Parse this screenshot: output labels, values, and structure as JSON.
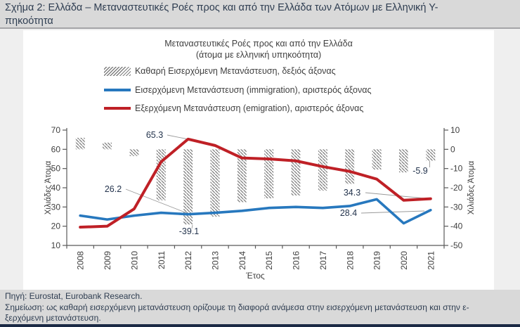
{
  "page": {
    "title_line1": "Σχήμα 2: Ελλάδα – Μεταναστευτικές Ροές προς και από την Ελλάδα των Ατόμων με Ελληνική Υ-",
    "title_line2": "πηκοότητα",
    "source": "Πηγή: Eurostat, Eurobank Research.",
    "note_line1": "Σημείωση: ως καθαρή εισερχόμενη μετανάστευση ορίζουμε τη διαφορά ανάμεσα στην εισερχόμενη μετανάστευση και στην ε-",
    "note_line2": "ξερχόμενη μετανάστευση."
  },
  "chart_data": {
    "type": "bar",
    "subtype": "combo-bar-line-dual-axis",
    "title_line1": "Μεταναστευτικές Ροές προς και από την Ελλάδα",
    "title_line2": "(άτομα με ελληνική υπηκοότητα)",
    "xlabel": "Έτος",
    "ylabel_left": "Χιλιάδες Άτομα",
    "ylabel_right": "Χιλιάδες Άτομα",
    "grid": false,
    "legend_position": "top-left",
    "categories": [
      "2008",
      "2009",
      "2010",
      "2011",
      "2012",
      "2013",
      "2014",
      "2015",
      "2016",
      "2017",
      "2018",
      "2019",
      "2020",
      "2021"
    ],
    "left_axis": {
      "min": 10,
      "max": 70,
      "ticks": [
        70,
        60,
        50,
        40,
        30,
        20,
        10
      ]
    },
    "right_axis": {
      "min": -50,
      "max": 10,
      "ticks": [
        10,
        0,
        -10,
        -20,
        -30,
        -40,
        -50
      ]
    },
    "series": [
      {
        "name": "Καθαρή Εισερχόμενη Μετανάστευση, δεξιός άξονας",
        "type": "bar",
        "axis": "right",
        "style": "hatched",
        "color": "#7f7f7f",
        "values": [
          6.0,
          3.5,
          -3.5,
          -26.5,
          -39.1,
          -35.0,
          -27.5,
          -25.5,
          -24.0,
          -21.5,
          -18.0,
          -10.5,
          -12.0,
          -5.9
        ]
      },
      {
        "name": "Εισερχόμενη Μετανάστευση (immigration), αριστερός άξονας",
        "type": "line",
        "axis": "left",
        "color": "#2778be",
        "values": [
          25.5,
          23.5,
          25.5,
          27.0,
          26.2,
          27.0,
          28.0,
          29.5,
          30.0,
          29.5,
          30.5,
          34.0,
          21.5,
          28.4
        ]
      },
      {
        "name": "Εξερχόμενη Μετανάστευση (emigration), αριστερός άξονας",
        "type": "line",
        "axis": "left",
        "color": "#bf2026",
        "values": [
          19.5,
          20.0,
          29.0,
          53.5,
          65.3,
          62.0,
          55.5,
          55.0,
          54.0,
          51.0,
          48.5,
          44.5,
          33.5,
          34.3
        ]
      }
    ],
    "annotations": [
      {
        "text": "65.3",
        "year": "2012",
        "series": "emigration"
      },
      {
        "text": "26.2",
        "year": "2012",
        "series": "immigration"
      },
      {
        "text": "-39.1",
        "year": "2012",
        "series": "net"
      },
      {
        "text": "34.3",
        "year": "2021",
        "series": "emigration"
      },
      {
        "text": "28.4",
        "year": "2021",
        "series": "immigration"
      },
      {
        "text": "-5.9",
        "year": "2021",
        "series": "net"
      }
    ]
  }
}
